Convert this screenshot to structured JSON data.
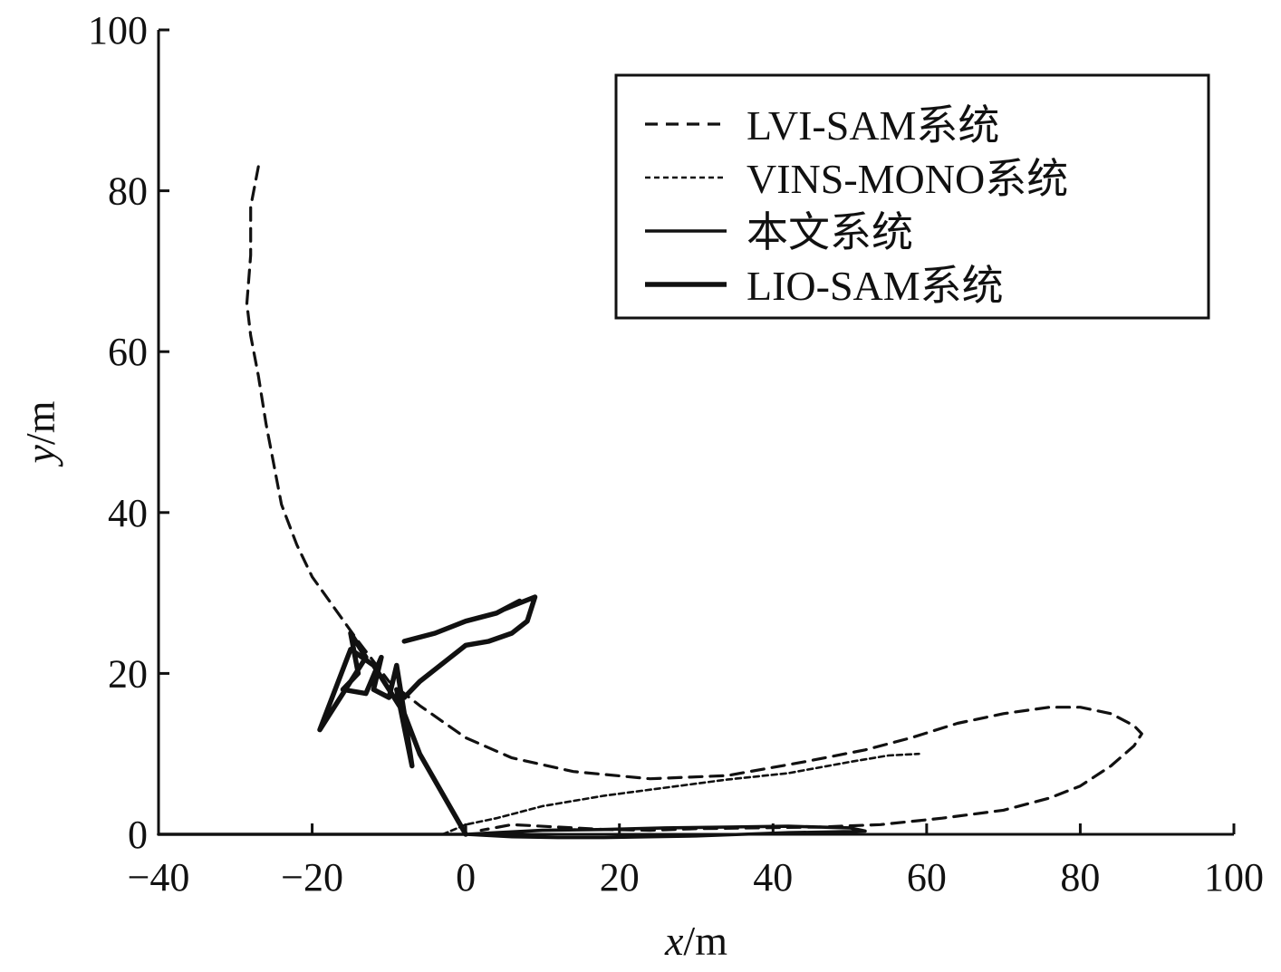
{
  "chart_data": {
    "type": "line",
    "title": "",
    "xlabel_var": "x",
    "xlabel_unit": "/m",
    "ylabel_var": "y",
    "ylabel_unit": "/m",
    "xlim": [
      -40,
      100
    ],
    "ylim": [
      0,
      100
    ],
    "xticks": [
      -40,
      -20,
      0,
      20,
      40,
      60,
      80,
      100
    ],
    "yticks": [
      0,
      20,
      40,
      60,
      80,
      100
    ],
    "xtick_labels": [
      "−40",
      "−20",
      "0",
      "20",
      "40",
      "60",
      "80",
      "100"
    ],
    "ytick_labels": [
      "0",
      "20",
      "40",
      "60",
      "80",
      "100"
    ],
    "grid": false,
    "legend_position": "top-right",
    "series": [
      {
        "name": "LVI-SAM系统",
        "style": "dashed",
        "points": [
          [
            -27,
            83
          ],
          [
            -28,
            78
          ],
          [
            -28,
            72
          ],
          [
            -28.5,
            66
          ],
          [
            -28,
            62
          ],
          [
            -27,
            57
          ],
          [
            -26,
            51
          ],
          [
            -25,
            46
          ],
          [
            -24,
            41
          ],
          [
            -22,
            36
          ],
          [
            -20,
            32
          ],
          [
            -17,
            28
          ],
          [
            -14,
            24
          ],
          [
            -10,
            19
          ],
          [
            -6,
            16
          ],
          [
            0,
            12
          ],
          [
            6,
            9.5
          ],
          [
            14,
            7.8
          ],
          [
            24,
            6.9
          ],
          [
            34,
            7.3
          ],
          [
            44,
            9
          ],
          [
            52,
            10.5
          ],
          [
            58,
            12
          ],
          [
            64,
            13.8
          ],
          [
            70,
            15
          ],
          [
            76,
            15.8
          ],
          [
            80,
            15.8
          ],
          [
            84,
            15
          ],
          [
            87,
            13.5
          ],
          [
            88,
            12.5
          ],
          [
            87,
            11
          ],
          [
            84,
            8.5
          ],
          [
            80,
            6
          ],
          [
            76,
            4.5
          ],
          [
            70,
            3
          ],
          [
            62,
            2
          ],
          [
            54,
            1.2
          ],
          [
            46,
            0.9
          ],
          [
            38,
            0.8
          ],
          [
            30,
            0.7
          ],
          [
            24,
            0.5
          ],
          [
            18,
            0.6
          ],
          [
            12,
            0.9
          ],
          [
            6,
            1.2
          ],
          [
            2,
            0.5
          ]
        ]
      },
      {
        "name": "VINS-MONO系统",
        "style": "dotted",
        "points": [
          [
            -3,
            0
          ],
          [
            0,
            1.2
          ],
          [
            4,
            2
          ],
          [
            10,
            3.5
          ],
          [
            18,
            4.8
          ],
          [
            26,
            5.8
          ],
          [
            34,
            6.8
          ],
          [
            42,
            7.6
          ],
          [
            50,
            9
          ],
          [
            55,
            9.8
          ],
          [
            59,
            10
          ]
        ]
      },
      {
        "name": "本文系统",
        "style": "solid",
        "points": [
          [
            -40,
            0
          ],
          [
            -20,
            0
          ],
          [
            0,
            0
          ],
          [
            6,
            -0.3
          ],
          [
            12,
            -0.4
          ],
          [
            18,
            -0.4
          ],
          [
            24,
            -0.3
          ],
          [
            30,
            -0.2
          ],
          [
            36,
            0
          ],
          [
            42,
            0.2
          ],
          [
            48,
            0.3
          ],
          [
            52,
            0.4
          ],
          [
            50,
            0.8
          ],
          [
            42,
            1
          ],
          [
            34,
            0.9
          ],
          [
            26,
            0.8
          ],
          [
            18,
            0.6
          ],
          [
            10,
            0.5
          ],
          [
            4,
            0.2
          ],
          [
            0,
            0
          ]
        ]
      },
      {
        "name": "LIO-SAM系统",
        "style": "thick-solid",
        "points": [
          [
            0,
            0
          ],
          [
            -3,
            5
          ],
          [
            -6,
            10
          ],
          [
            -8,
            15
          ],
          [
            -10,
            18
          ],
          [
            -12,
            21
          ],
          [
            -15,
            23
          ],
          [
            -17,
            18
          ],
          [
            -19,
            13
          ],
          [
            -17,
            16
          ],
          [
            -15,
            19
          ],
          [
            -13,
            22
          ],
          [
            -15,
            25
          ],
          [
            -14,
            20
          ],
          [
            -16,
            18
          ],
          [
            -13,
            17.5
          ],
          [
            -11,
            22
          ],
          [
            -12,
            18
          ],
          [
            -10,
            17
          ],
          [
            -9,
            21
          ],
          [
            -8,
            15
          ],
          [
            -7,
            8.5
          ],
          [
            -9,
            18
          ],
          [
            -8,
            17
          ],
          [
            -6,
            19
          ],
          [
            -2,
            22
          ],
          [
            0,
            23.5
          ],
          [
            3,
            24
          ],
          [
            6,
            25
          ],
          [
            8,
            26.5
          ],
          [
            9,
            29.5
          ],
          [
            5,
            28
          ],
          [
            7,
            29
          ],
          [
            4,
            27.5
          ],
          [
            0,
            26.5
          ],
          [
            -4,
            25
          ],
          [
            -8,
            24
          ]
        ]
      }
    ]
  }
}
